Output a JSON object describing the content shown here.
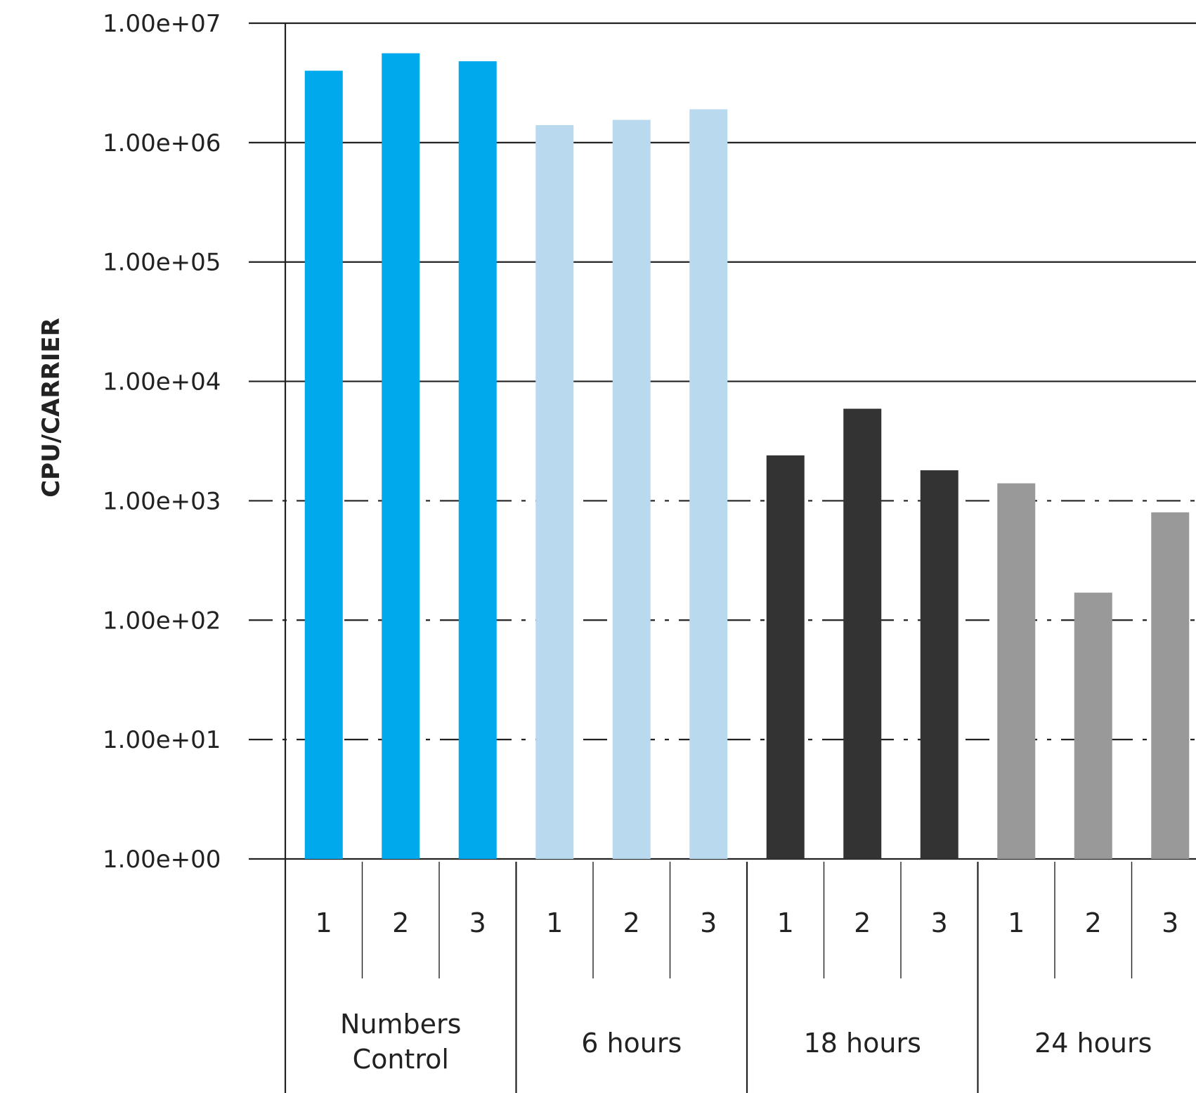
{
  "chart_data": {
    "type": "bar",
    "title": "",
    "xlabel": "",
    "ylabel": "CPU/CARRIER",
    "scale": "log10",
    "ylim": [
      1,
      10000000
    ],
    "y_ticks": [
      "1.00e+00",
      "1.00e+01",
      "1.00e+02",
      "1.00e+03",
      "1.00e+04",
      "1.00e+05",
      "1.00e+06",
      "1.00e+07"
    ],
    "grid": "horizontal; solid lines at 1e+04 and above, dashed lines at 1e+01 to 1e+03",
    "legend": "none",
    "groups": [
      {
        "name_lines": [
          "Numbers",
          "Control"
        ],
        "color": "#00a8ec",
        "categories": [
          "1",
          "2",
          "3"
        ],
        "values": [
          4000000,
          5600000,
          4800000
        ]
      },
      {
        "name_lines": [
          "6 hours"
        ],
        "color": "#b9d9ee",
        "categories": [
          "1",
          "2",
          "3"
        ],
        "values": [
          1400000,
          1550000,
          1900000
        ]
      },
      {
        "name_lines": [
          "18 hours"
        ],
        "color": "#333333",
        "categories": [
          "1",
          "2",
          "3"
        ],
        "values": [
          2400,
          5900,
          1800
        ]
      },
      {
        "name_lines": [
          "24 hours"
        ],
        "color": "#999999",
        "categories": [
          "1",
          "2",
          "3"
        ],
        "values": [
          1400,
          170,
          800
        ]
      }
    ]
  }
}
